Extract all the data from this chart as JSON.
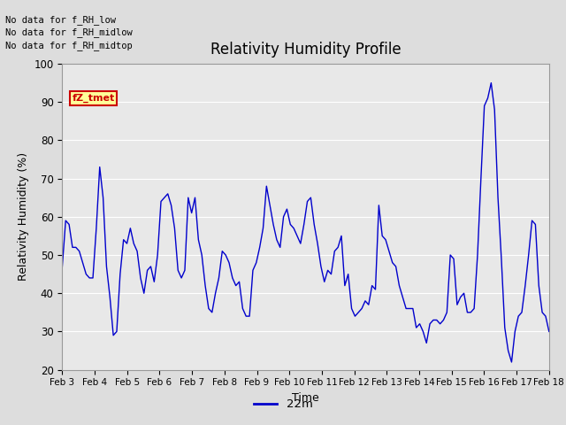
{
  "title": "Relativity Humidity Profile",
  "xlabel": "Time",
  "ylabel": "Relativity Humidity (%)",
  "ylim": [
    20,
    100
  ],
  "yticks": [
    20,
    30,
    40,
    50,
    60,
    70,
    80,
    90,
    100
  ],
  "xtick_labels": [
    "Feb 3",
    "Feb 4",
    "Feb 5",
    "Feb 6",
    "Feb 7",
    "Feb 8",
    "Feb 9",
    "Feb 10",
    "Feb 11",
    "Feb 12",
    "Feb 13",
    "Feb 14",
    "Feb 15",
    "Feb 16",
    "Feb 17",
    "Feb 18"
  ],
  "line_color": "#0000cc",
  "line_label": "22m",
  "legend_line_color": "#0000cc",
  "bg_color": "#dddddd",
  "plot_bg_color": "#e8e8e8",
  "annotation_color": "#000000",
  "tz_tmet_color": "#cc0000",
  "tz_tmet_bg": "#ffff99",
  "no_data_texts": [
    "No data for f_RH_low",
    "No data for f_RH_midlow",
    "No data for f_RH_midtop"
  ],
  "y_values": [
    47,
    59,
    58,
    52,
    52,
    51,
    48,
    45,
    44,
    44,
    57,
    73,
    65,
    47,
    39,
    29,
    30,
    45,
    54,
    53,
    57,
    53,
    51,
    44,
    40,
    46,
    47,
    43,
    50,
    64,
    65,
    66,
    63,
    57,
    46,
    44,
    46,
    65,
    61,
    65,
    54,
    50,
    42,
    36,
    35,
    40,
    44,
    51,
    50,
    48,
    44,
    42,
    43,
    36,
    34,
    34,
    46,
    48,
    52,
    57,
    68,
    63,
    58,
    54,
    52,
    60,
    62,
    58,
    57,
    55,
    53,
    58,
    64,
    65,
    58,
    53,
    47,
    43,
    46,
    45,
    51,
    52,
    55,
    42,
    45,
    36,
    34,
    35,
    36,
    38,
    37,
    42,
    41,
    63,
    55,
    54,
    51,
    48,
    47,
    42,
    39,
    36,
    36,
    36,
    31,
    32,
    30,
    27,
    32,
    33,
    33,
    32,
    33,
    35,
    50,
    49,
    37,
    39,
    40,
    35,
    35,
    36,
    50,
    70,
    89,
    91,
    95,
    88,
    65,
    49,
    31,
    25,
    22,
    30,
    34,
    35,
    42,
    50,
    59,
    58,
    42,
    35,
    34,
    30
  ]
}
